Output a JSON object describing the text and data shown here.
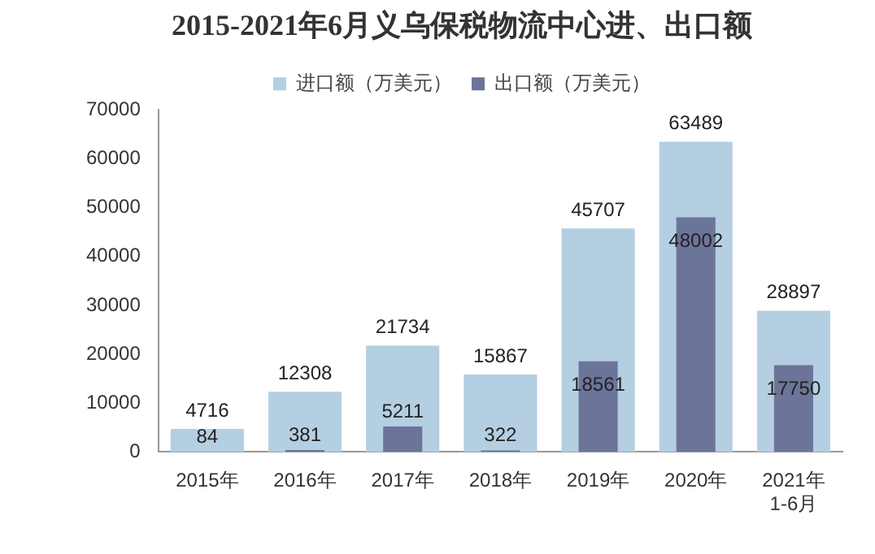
{
  "chart_data": {
    "type": "bar",
    "title": "2015-2021年6月义乌保税物流中心进、出口额",
    "categories": [
      "2015年",
      "2016年",
      "2017年",
      "2018年",
      "2019年",
      "2020年",
      "2021年\n1-6月"
    ],
    "series": [
      {
        "name": "进口额（万美元）",
        "color": "#b4cfe2",
        "values": [
          4716,
          12308,
          21734,
          15867,
          45707,
          63489,
          28897
        ]
      },
      {
        "name": "出口额（万美元）",
        "color": "#6d7499",
        "values": [
          84,
          381,
          5211,
          322,
          18561,
          48002,
          17750
        ]
      }
    ],
    "ylim": [
      0,
      70000
    ],
    "yticks": [
      0,
      10000,
      20000,
      30000,
      40000,
      50000,
      60000,
      70000
    ],
    "grid": false,
    "legend": "top",
    "data_labels": true
  }
}
